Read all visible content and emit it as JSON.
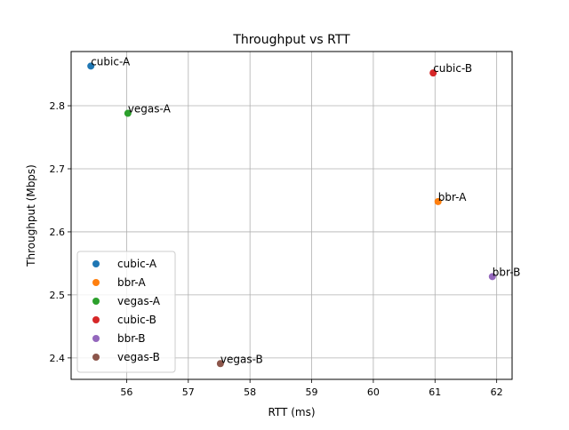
{
  "chart_data": {
    "type": "scatter",
    "title": "Throughput vs RTT",
    "xlabel": "RTT (ms)",
    "ylabel": "Throughput (Mbps)",
    "xlim": [
      55.1,
      62.25
    ],
    "ylim": [
      2.366,
      2.886
    ],
    "xticks": [
      56,
      57,
      58,
      59,
      60,
      61,
      62
    ],
    "yticks": [
      2.4,
      2.5,
      2.6,
      2.7,
      2.8
    ],
    "grid": true,
    "legend_position": "lower-left",
    "series": [
      {
        "name": "cubic-A",
        "color": "#1f77b4",
        "points": [
          {
            "x": 55.42,
            "y": 2.863,
            "label": "cubic-A"
          }
        ]
      },
      {
        "name": "bbr-A",
        "color": "#ff7f0e",
        "points": [
          {
            "x": 61.05,
            "y": 2.648,
            "label": "bbr-A"
          }
        ]
      },
      {
        "name": "vegas-A",
        "color": "#2ca02c",
        "points": [
          {
            "x": 56.02,
            "y": 2.788,
            "label": "vegas-A"
          }
        ]
      },
      {
        "name": "cubic-B",
        "color": "#d62728",
        "points": [
          {
            "x": 60.97,
            "y": 2.852,
            "label": "cubic-B"
          }
        ]
      },
      {
        "name": "bbr-B",
        "color": "#9467bd",
        "points": [
          {
            "x": 61.93,
            "y": 2.529,
            "label": "bbr-B"
          }
        ]
      },
      {
        "name": "vegas-B",
        "color": "#8c564b",
        "points": [
          {
            "x": 57.52,
            "y": 2.391,
            "label": "vegas-B"
          }
        ]
      }
    ]
  }
}
